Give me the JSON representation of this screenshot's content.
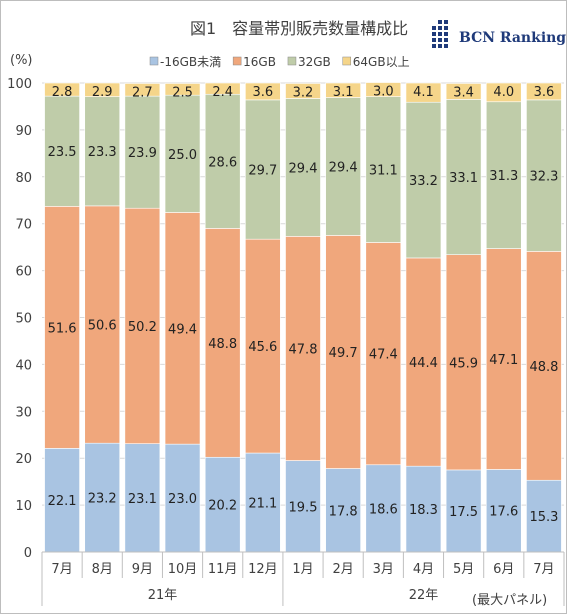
{
  "chart_data": {
    "type": "bar",
    "stacked": true,
    "title": "図1　容量帯別販売数量構成比",
    "brand": "BCN Ranking",
    "ylabel": "(%)",
    "ylim": [
      0,
      100
    ],
    "yticks": [
      0,
      10,
      20,
      30,
      40,
      50,
      60,
      70,
      80,
      90,
      100
    ],
    "categories": [
      "7月",
      "8月",
      "9月",
      "10月",
      "11月",
      "12月",
      "1月",
      "2月",
      "3月",
      "4月",
      "5月",
      "6月",
      "7月"
    ],
    "year_groups": [
      {
        "label": "21年",
        "start": 0,
        "end": 5
      },
      {
        "label": "22年",
        "start": 6,
        "end": 12
      }
    ],
    "note": "(最大パネル)",
    "legend_position": "top",
    "series": [
      {
        "name": "-16GB未満",
        "color": "#a9c4e2",
        "values": [
          22.1,
          23.2,
          23.1,
          23.0,
          20.2,
          21.1,
          19.5,
          17.8,
          18.6,
          18.3,
          17.5,
          17.6,
          15.3
        ]
      },
      {
        "name": "16GB",
        "color": "#f0a77c",
        "values": [
          51.6,
          50.6,
          50.2,
          49.4,
          48.8,
          45.6,
          47.8,
          49.7,
          47.4,
          44.4,
          45.9,
          47.1,
          48.8
        ]
      },
      {
        "name": "32GB",
        "color": "#bfcca9",
        "values": [
          23.5,
          23.3,
          23.9,
          25.0,
          28.6,
          29.7,
          29.4,
          29.4,
          31.1,
          33.2,
          33.1,
          31.3,
          32.3
        ]
      },
      {
        "name": "64GB以上",
        "color": "#f5d58a",
        "values": [
          2.8,
          2.9,
          2.7,
          2.5,
          2.4,
          3.6,
          3.2,
          3.1,
          3.0,
          4.1,
          3.4,
          4.0,
          3.6
        ]
      }
    ]
  }
}
